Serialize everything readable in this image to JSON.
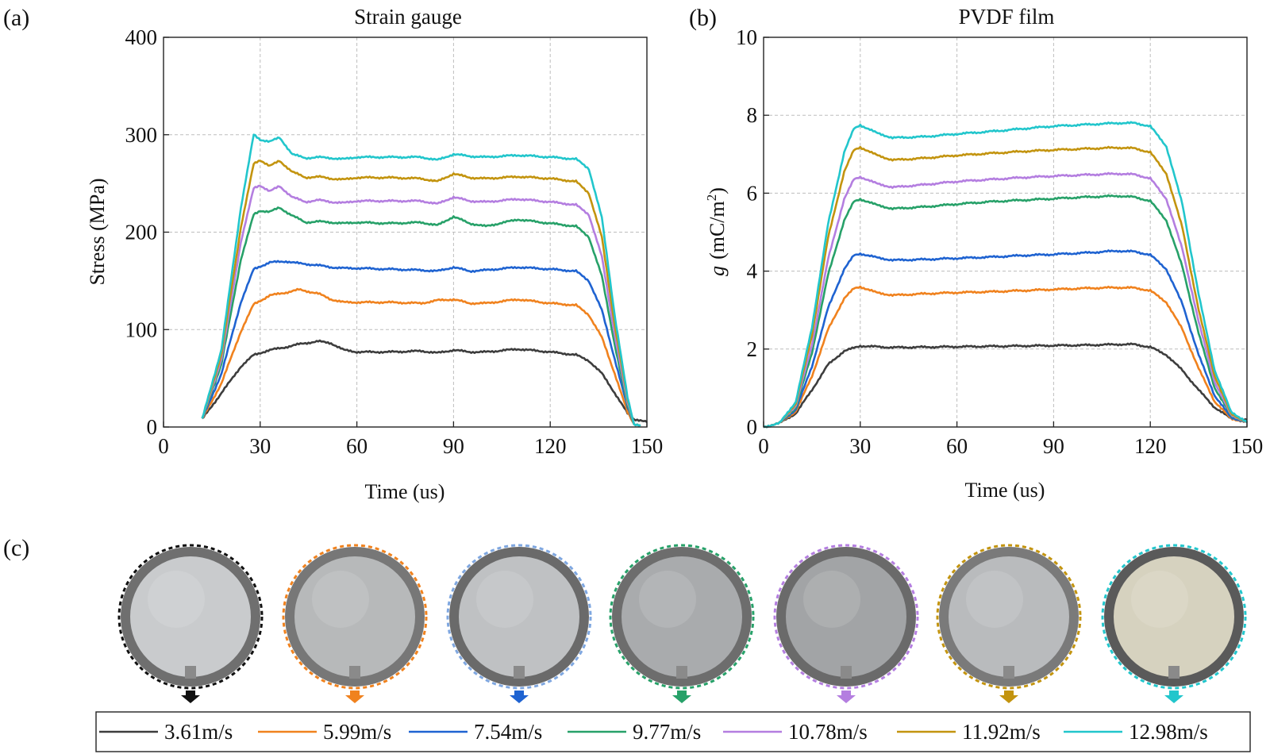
{
  "panels": {
    "a": "(a)",
    "b": "(b)",
    "c": "(c)"
  },
  "colors": {
    "3.61m/s": "#3d3d3d",
    "5.99m/s": "#f0821e",
    "7.54m/s": "#1f63d1",
    "9.77m/s": "#27a169",
    "10.78m/s": "#b47ee0",
    "11.92m/s": "#c3940f",
    "12.98m/s": "#22c6cc"
  },
  "chart_data": [
    {
      "type": "line",
      "title": "Strain gauge",
      "xlabel": "Time (us)",
      "ylabel": "Stress (MPa)",
      "xlim": [
        0,
        150
      ],
      "ylim": [
        0,
        400
      ],
      "xticks": [
        0,
        30,
        60,
        90,
        120,
        150
      ],
      "yticks": [
        0,
        100,
        200,
        300,
        400
      ],
      "grid": true,
      "series": [
        {
          "name": "3.61m/s",
          "x": [
            12,
            18,
            24,
            28,
            33,
            38,
            42,
            48,
            52,
            56,
            60,
            70,
            80,
            85,
            90,
            95,
            100,
            110,
            120,
            128,
            132,
            136,
            140,
            144,
            146,
            148,
            150
          ],
          "y": [
            8,
            35,
            62,
            74,
            79,
            82,
            85,
            88,
            86,
            79,
            77,
            77,
            78,
            76,
            79,
            77,
            77,
            80,
            77,
            74,
            68,
            55,
            35,
            14,
            8,
            7,
            5
          ]
        },
        {
          "name": "5.99m/s",
          "x": [
            12,
            18,
            24,
            28,
            33,
            38,
            42,
            48,
            52,
            56,
            60,
            70,
            80,
            85,
            90,
            95,
            100,
            110,
            120,
            128,
            132,
            136,
            140,
            144,
            146,
            148
          ],
          "y": [
            8,
            45,
            98,
            126,
            135,
            138,
            141,
            137,
            131,
            128,
            128,
            128,
            127,
            130,
            131,
            127,
            127,
            131,
            127,
            125,
            115,
            92,
            55,
            15,
            3,
            2
          ]
        },
        {
          "name": "7.54m/s",
          "x": [
            12,
            18,
            24,
            28,
            33,
            38,
            42,
            48,
            52,
            56,
            60,
            70,
            80,
            85,
            90,
            95,
            100,
            110,
            120,
            128,
            132,
            136,
            140,
            144,
            146,
            148
          ],
          "y": [
            8,
            55,
            128,
            162,
            169,
            170,
            168,
            166,
            164,
            163,
            163,
            162,
            161,
            160,
            164,
            160,
            161,
            164,
            162,
            160,
            150,
            120,
            70,
            20,
            3,
            2
          ]
        },
        {
          "name": "9.77m/s",
          "x": [
            12,
            18,
            24,
            28,
            30,
            33,
            36,
            40,
            44,
            48,
            52,
            56,
            60,
            70,
            80,
            85,
            90,
            95,
            100,
            110,
            120,
            128,
            132,
            136,
            140,
            144,
            146,
            148
          ],
          "y": [
            8,
            65,
            172,
            218,
            222,
            221,
            225,
            217,
            210,
            211,
            210,
            209,
            210,
            209,
            210,
            207,
            216,
            209,
            206,
            213,
            209,
            206,
            195,
            155,
            85,
            22,
            3,
            2
          ]
        },
        {
          "name": "10.78m/s",
          "x": [
            12,
            18,
            24,
            28,
            30,
            33,
            36,
            40,
            44,
            48,
            52,
            56,
            60,
            70,
            80,
            85,
            90,
            95,
            100,
            110,
            120,
            128,
            132,
            136,
            140,
            144,
            146,
            148
          ],
          "y": [
            8,
            70,
            190,
            245,
            248,
            242,
            247,
            236,
            231,
            233,
            231,
            230,
            232,
            232,
            232,
            229,
            236,
            232,
            231,
            234,
            231,
            228,
            218,
            175,
            95,
            25,
            3,
            2
          ]
        },
        {
          "name": "11.92m/s",
          "x": [
            12,
            18,
            24,
            28,
            30,
            33,
            36,
            40,
            44,
            48,
            52,
            56,
            60,
            70,
            80,
            85,
            90,
            95,
            100,
            110,
            120,
            128,
            132,
            136,
            140,
            144,
            146,
            148
          ],
          "y": [
            8,
            75,
            205,
            270,
            274,
            268,
            273,
            262,
            256,
            257,
            255,
            254,
            256,
            256,
            255,
            252,
            260,
            256,
            255,
            257,
            255,
            252,
            240,
            195,
            105,
            28,
            3,
            2
          ]
        },
        {
          "name": "12.98m/s",
          "x": [
            12,
            18,
            24,
            28,
            30,
            33,
            36,
            40,
            44,
            48,
            52,
            56,
            60,
            70,
            80,
            85,
            90,
            95,
            100,
            110,
            120,
            128,
            132,
            136,
            140,
            144,
            146,
            148
          ],
          "y": [
            8,
            80,
            225,
            300,
            295,
            293,
            297,
            280,
            276,
            277,
            276,
            275,
            277,
            277,
            277,
            274,
            280,
            278,
            277,
            279,
            277,
            275,
            265,
            215,
            115,
            30,
            3,
            2
          ]
        }
      ]
    },
    {
      "type": "line",
      "title": "PVDF film",
      "xlabel": "Time (us)",
      "ylabel_italic": "g",
      "ylabel_unit": "(mC/m",
      "ylabel_sup": "2",
      "ylabel_close": ")",
      "xlim": [
        0,
        150
      ],
      "ylim": [
        0,
        10
      ],
      "xticks": [
        0,
        30,
        60,
        90,
        120,
        150
      ],
      "yticks": [
        0,
        2,
        4,
        6,
        8,
        10
      ],
      "grid": true,
      "series": [
        {
          "name": "3.61m/s",
          "x": [
            0,
            5,
            10,
            15,
            20,
            25,
            30,
            35,
            40,
            50,
            60,
            70,
            80,
            90,
            100,
            110,
            115,
            120,
            125,
            130,
            135,
            140,
            145,
            150
          ],
          "y": [
            0.0,
            0.1,
            0.35,
            0.95,
            1.6,
            1.95,
            2.08,
            2.06,
            2.04,
            2.05,
            2.06,
            2.07,
            2.08,
            2.09,
            2.1,
            2.12,
            2.12,
            2.05,
            1.85,
            1.45,
            0.95,
            0.5,
            0.22,
            0.18
          ]
        },
        {
          "name": "5.99m/s",
          "x": [
            0,
            5,
            10,
            15,
            20,
            25,
            28,
            30,
            35,
            40,
            50,
            60,
            70,
            80,
            90,
            100,
            110,
            115,
            120,
            125,
            130,
            135,
            140,
            145,
            150
          ],
          "y": [
            0.0,
            0.1,
            0.4,
            1.3,
            2.5,
            3.3,
            3.55,
            3.6,
            3.45,
            3.38,
            3.42,
            3.45,
            3.47,
            3.5,
            3.53,
            3.56,
            3.58,
            3.57,
            3.5,
            3.2,
            2.5,
            1.5,
            0.65,
            0.22,
            0.12
          ]
        },
        {
          "name": "7.54m/s",
          "x": [
            0,
            5,
            10,
            15,
            20,
            25,
            28,
            30,
            35,
            40,
            50,
            60,
            70,
            80,
            90,
            100,
            110,
            115,
            120,
            125,
            130,
            135,
            140,
            145,
            150
          ],
          "y": [
            0.0,
            0.1,
            0.45,
            1.55,
            3.05,
            4.05,
            4.4,
            4.45,
            4.35,
            4.28,
            4.3,
            4.33,
            4.36,
            4.4,
            4.43,
            4.47,
            4.52,
            4.5,
            4.42,
            4.05,
            3.15,
            1.85,
            0.8,
            0.25,
            0.12
          ]
        },
        {
          "name": "9.77m/s",
          "x": [
            0,
            5,
            10,
            15,
            20,
            25,
            28,
            30,
            35,
            40,
            50,
            60,
            70,
            80,
            90,
            100,
            110,
            115,
            120,
            125,
            130,
            135,
            140,
            145,
            150
          ],
          "y": [
            0.0,
            0.1,
            0.5,
            1.9,
            3.9,
            5.3,
            5.78,
            5.85,
            5.7,
            5.6,
            5.65,
            5.72,
            5.78,
            5.82,
            5.86,
            5.9,
            5.93,
            5.9,
            5.8,
            5.3,
            4.1,
            2.4,
            1.0,
            0.3,
            0.12
          ]
        },
        {
          "name": "10.78m/s",
          "x": [
            0,
            5,
            10,
            15,
            20,
            25,
            28,
            30,
            35,
            40,
            50,
            60,
            70,
            80,
            90,
            100,
            110,
            115,
            120,
            125,
            130,
            135,
            140,
            145,
            150
          ],
          "y": [
            0.0,
            0.1,
            0.55,
            2.1,
            4.3,
            5.85,
            6.35,
            6.42,
            6.25,
            6.15,
            6.22,
            6.3,
            6.35,
            6.4,
            6.44,
            6.47,
            6.5,
            6.48,
            6.38,
            5.85,
            4.55,
            2.7,
            1.15,
            0.32,
            0.12
          ]
        },
        {
          "name": "11.92m/s",
          "x": [
            0,
            5,
            10,
            15,
            20,
            25,
            28,
            30,
            35,
            40,
            50,
            60,
            70,
            80,
            90,
            100,
            110,
            115,
            120,
            125,
            130,
            135,
            140,
            145,
            150
          ],
          "y": [
            0.0,
            0.1,
            0.6,
            2.35,
            4.85,
            6.55,
            7.1,
            7.18,
            6.98,
            6.85,
            6.9,
            6.97,
            7.02,
            7.07,
            7.11,
            7.14,
            7.17,
            7.15,
            7.05,
            6.5,
            5.1,
            3.0,
            1.3,
            0.35,
            0.12
          ]
        },
        {
          "name": "12.98m/s",
          "x": [
            0,
            5,
            10,
            15,
            20,
            25,
            28,
            30,
            35,
            40,
            50,
            60,
            70,
            80,
            90,
            100,
            110,
            115,
            120,
            125,
            130,
            135,
            140,
            145,
            150
          ],
          "y": [
            0.0,
            0.1,
            0.65,
            2.55,
            5.2,
            7.05,
            7.65,
            7.75,
            7.55,
            7.42,
            7.45,
            7.52,
            7.58,
            7.65,
            7.72,
            7.76,
            7.8,
            7.8,
            7.72,
            7.2,
            5.7,
            3.4,
            1.45,
            0.4,
            0.12
          ]
        }
      ]
    }
  ],
  "legend": [
    "3.61m/s",
    "5.99m/s",
    "7.54m/s",
    "9.77m/s",
    "10.78m/s",
    "11.92m/s",
    "12.98m/s"
  ],
  "samples": [
    {
      "name": "3.61m/s",
      "border": "#111111",
      "arrow": "#111111",
      "face": "#c9cbcd",
      "rim": "#6f6f6f"
    },
    {
      "name": "5.99m/s",
      "border": "#f0821e",
      "arrow": "#f0821e",
      "face": "#b7b9ba",
      "rim": "#777777"
    },
    {
      "name": "7.54m/s",
      "border": "#7fa7e0",
      "arrow": "#1f63d1",
      "face": "#bfc1c3",
      "rim": "#6a6a6a"
    },
    {
      "name": "9.77m/s",
      "border": "#27a169",
      "arrow": "#27a169",
      "face": "#a9abad",
      "rim": "#6d6d6d"
    },
    {
      "name": "10.78m/s",
      "border": "#b47ee0",
      "arrow": "#b47ee0",
      "face": "#a2a4a6",
      "rim": "#6a6a6a"
    },
    {
      "name": "11.92m/s",
      "border": "#c3940f",
      "arrow": "#c3940f",
      "face": "#b9bbbd",
      "rim": "#7a7a7a"
    },
    {
      "name": "12.98m/s",
      "border": "#22c6cc",
      "arrow": "#22c6cc",
      "face": "#d6d2bf",
      "rim": "#5a5a5a"
    }
  ]
}
